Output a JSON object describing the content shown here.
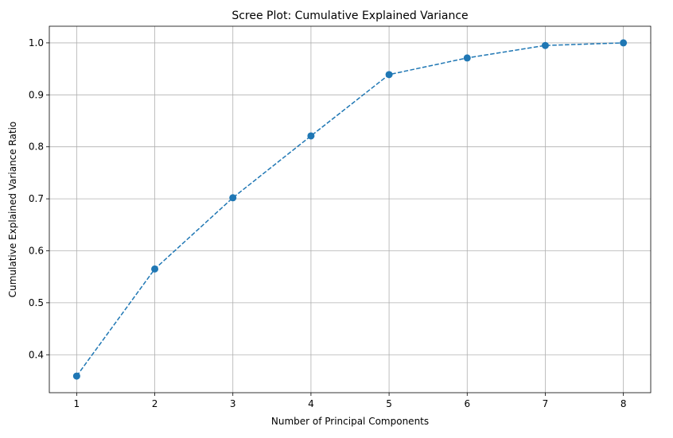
{
  "chart_data": {
    "type": "line",
    "title": "Scree Plot: Cumulative Explained Variance",
    "xlabel": "Number of Principal Components",
    "ylabel": "Cumulative Explained Variance Ratio",
    "x": [
      1,
      2,
      3,
      4,
      5,
      6,
      7,
      8
    ],
    "series": [
      {
        "values": [
          0.359,
          0.565,
          0.702,
          0.821,
          0.939,
          0.971,
          0.995,
          1.0
        ]
      }
    ],
    "xticks": [
      "1",
      "2",
      "3",
      "4",
      "5",
      "6",
      "7",
      "8"
    ],
    "yticks": [
      "0.4",
      "0.5",
      "0.6",
      "0.7",
      "0.8",
      "0.9",
      "1.0"
    ],
    "xlim": [
      0.65,
      8.35
    ],
    "ylim": [
      0.327,
      1.032
    ],
    "grid": true,
    "line_style": "dashed",
    "marker": "circle",
    "colors": {
      "line": "#1f77b4",
      "marker": "#1f77b4",
      "grid": "#b0b0b0"
    }
  }
}
